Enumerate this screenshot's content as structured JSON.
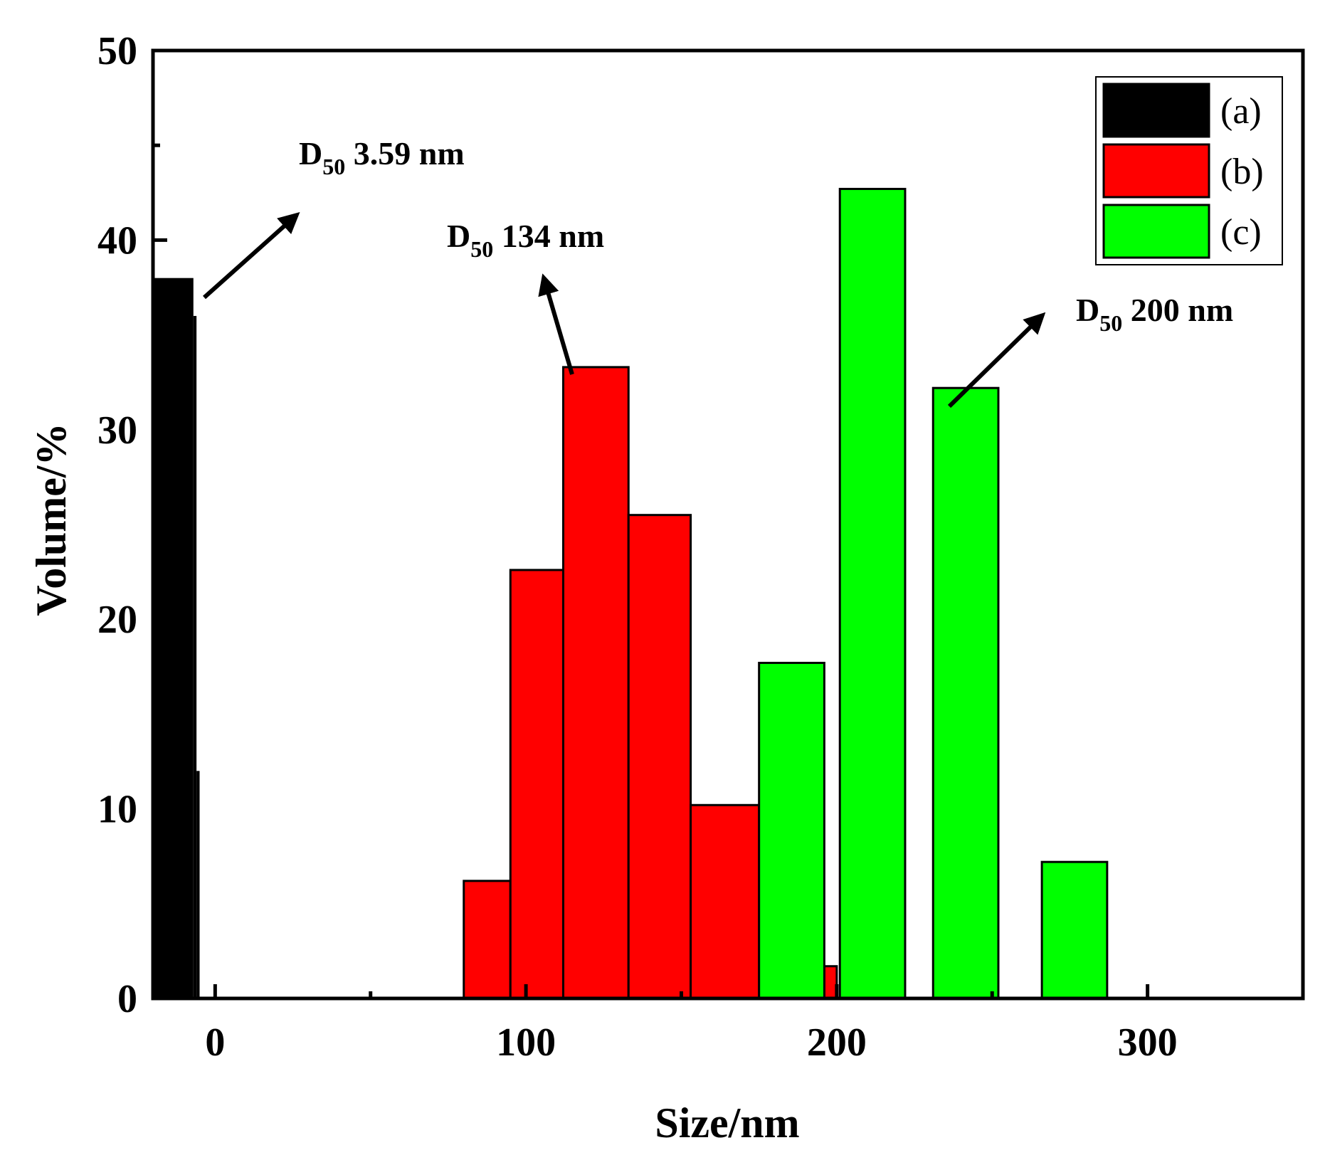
{
  "chart_data": {
    "type": "bar",
    "xlabel": "Size/nm",
    "ylabel": "Volume/%",
    "xlim": [
      -20,
      350
    ],
    "ylim": [
      0,
      50
    ],
    "xticks": [
      0,
      100,
      200,
      300
    ],
    "yticks": [
      0,
      10,
      20,
      30,
      40,
      50
    ],
    "legend_position": "top-right",
    "series": [
      {
        "name": "(a)",
        "color": "#000000",
        "bars": [
          {
            "x0": -20,
            "x1": -7,
            "value": 38
          },
          {
            "x0": -7,
            "x1": -6,
            "value": 36
          },
          {
            "x0": -6,
            "x1": -5,
            "value": 12
          }
        ]
      },
      {
        "name": "(b)",
        "color": "#ff0000",
        "bars": [
          {
            "x0": 80,
            "x1": 95,
            "value": 6.2
          },
          {
            "x0": 95,
            "x1": 112,
            "value": 22.6
          },
          {
            "x0": 112,
            "x1": 133,
            "value": 33.3
          },
          {
            "x0": 133,
            "x1": 153,
            "value": 25.5
          },
          {
            "x0": 153,
            "x1": 175,
            "value": 10.2
          },
          {
            "x0": 196,
            "x1": 200,
            "value": 1.7
          }
        ]
      },
      {
        "name": "(c)",
        "color": "#00ff00",
        "bars": [
          {
            "x0": 175,
            "x1": 196,
            "value": 17.7
          },
          {
            "x0": 201,
            "x1": 222,
            "value": 42.7
          },
          {
            "x0": 231,
            "x1": 252,
            "value": 32.2
          },
          {
            "x0": 266,
            "x1": 287,
            "value": 7.2
          }
        ]
      }
    ],
    "annotations": [
      {
        "main": "D",
        "sub": "50",
        "value": " 3.59 nm"
      },
      {
        "main": "D",
        "sub": "50",
        "value": " 134 nm"
      },
      {
        "main": "D",
        "sub": "50",
        "value": " 200 nm"
      }
    ]
  }
}
